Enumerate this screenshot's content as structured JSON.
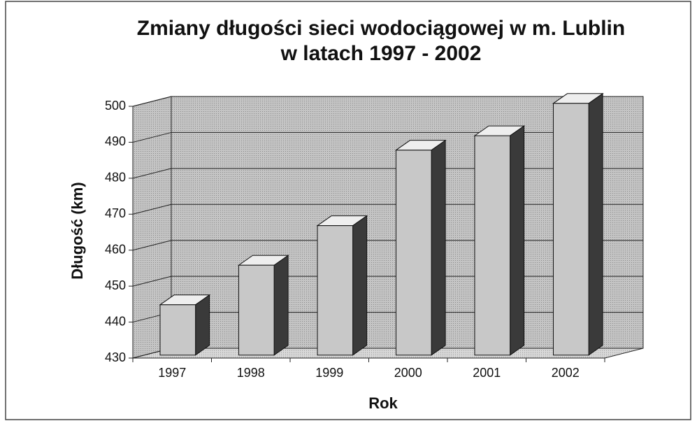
{
  "chart_data": {
    "type": "bar3d",
    "title": [
      "Zmiany długości sieci wodociągowej w m. Lublin",
      "w latach 1997 - 2002"
    ],
    "x_label": "Rok",
    "y_label": "Długość (km)",
    "categories": [
      "1997",
      "1998",
      "1999",
      "2000",
      "2001",
      "2002"
    ],
    "values": [
      444,
      455,
      466,
      487,
      491,
      500
    ],
    "color": "#c8c8c8",
    "ylim": [
      430,
      500
    ],
    "yticks": [
      430,
      440,
      450,
      460,
      470,
      480,
      490,
      500
    ],
    "grid": true
  }
}
